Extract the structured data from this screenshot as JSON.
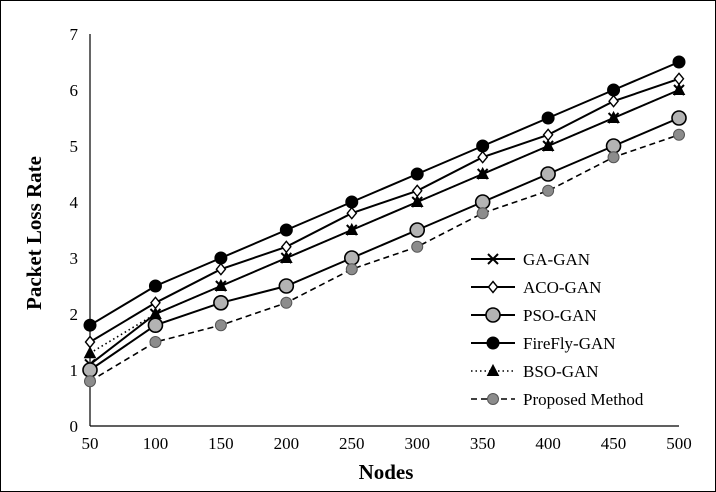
{
  "chart_data": {
    "type": "line",
    "title": "",
    "xlabel": "Nodes",
    "ylabel": "Packet Loss Rate",
    "x": [
      50,
      100,
      150,
      200,
      250,
      300,
      350,
      400,
      450,
      500
    ],
    "ylim": [
      0,
      7
    ],
    "yticks": [
      0,
      1,
      2,
      3,
      4,
      5,
      6,
      7
    ],
    "grid": false,
    "legend_position": "right",
    "series": [
      {
        "name": "GA-GAN",
        "marker": "x",
        "line": "solid",
        "color": "#000000",
        "values": [
          1.1,
          2.0,
          2.5,
          3.0,
          3.5,
          4.0,
          4.5,
          5.0,
          5.5,
          6.0
        ]
      },
      {
        "name": "ACO-GAN",
        "marker": "diamond-open",
        "line": "solid",
        "color": "#000000",
        "values": [
          1.5,
          2.2,
          2.8,
          3.2,
          3.8,
          4.2,
          4.8,
          5.2,
          5.8,
          6.2
        ]
      },
      {
        "name": "PSO-GAN",
        "marker": "circle-gray",
        "line": "solid",
        "color": "#000000",
        "values": [
          1.0,
          1.8,
          2.2,
          2.5,
          3.0,
          3.5,
          4.0,
          4.5,
          5.0,
          5.5
        ]
      },
      {
        "name": "FireFly-GAN",
        "marker": "circle-black",
        "line": "solid",
        "color": "#000000",
        "values": [
          1.8,
          2.5,
          3.0,
          3.5,
          4.0,
          4.5,
          5.0,
          5.5,
          6.0,
          6.5
        ]
      },
      {
        "name": "BSO-GAN",
        "marker": "triangle",
        "line": "dotted",
        "color": "#000000",
        "values": [
          1.3,
          2.0,
          2.5,
          3.0,
          3.5,
          4.0,
          4.5,
          5.0,
          5.5,
          6.0
        ]
      },
      {
        "name": "Proposed Method",
        "marker": "circle-gray-small",
        "line": "dashed",
        "color": "#000000",
        "values": [
          0.8,
          1.5,
          1.8,
          2.2,
          2.8,
          3.2,
          3.8,
          4.2,
          4.8,
          5.2
        ]
      }
    ]
  }
}
